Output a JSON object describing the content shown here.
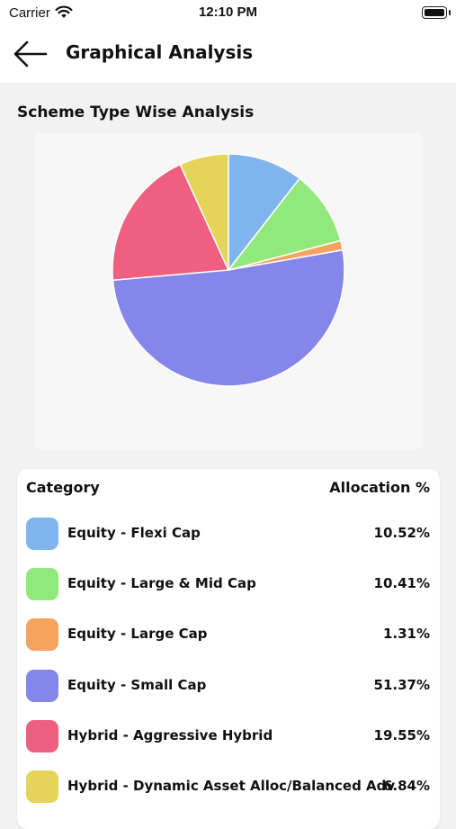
{
  "status_bar": {
    "carrier": "Carrier",
    "time": "12:10 PM"
  },
  "header": {
    "title": "Graphical Analysis"
  },
  "section": {
    "title": "Scheme Type Wise Analysis"
  },
  "table": {
    "col_category": "Category",
    "col_allocation": "Allocation %",
    "rows": [
      {
        "label": "Equity - Flexi Cap",
        "value": "10.52%",
        "color": "#7fb5ec"
      },
      {
        "label": "Equity - Large & Mid Cap",
        "value": "10.41%",
        "color": "#92e97b"
      },
      {
        "label": "Equity - Large Cap",
        "value": "1.31%",
        "color": "#f6a35e"
      },
      {
        "label": "Equity - Small Cap",
        "value": "51.37%",
        "color": "#8486ea"
      },
      {
        "label": "Hybrid - Aggressive Hybrid",
        "value": "19.55%",
        "color": "#ef5f7f"
      },
      {
        "label": "Hybrid - Dynamic Asset Alloc/Balanced Adv",
        "value": "6.84%",
        "color": "#e5d45a"
      }
    ]
  },
  "chart_data": {
    "type": "pie",
    "categories": [
      "Equity - Flexi Cap",
      "Equity - Large & Mid Cap",
      "Equity - Large Cap",
      "Equity - Small Cap",
      "Hybrid - Aggressive Hybrid",
      "Hybrid - Dynamic Asset Alloc/Balanced Adv"
    ],
    "values": [
      10.52,
      10.41,
      1.31,
      51.37,
      19.55,
      6.84
    ],
    "colors": [
      "#7fb5ec",
      "#92e97b",
      "#f6a35e",
      "#8486ea",
      "#ef5f7f",
      "#e5d45a"
    ]
  }
}
